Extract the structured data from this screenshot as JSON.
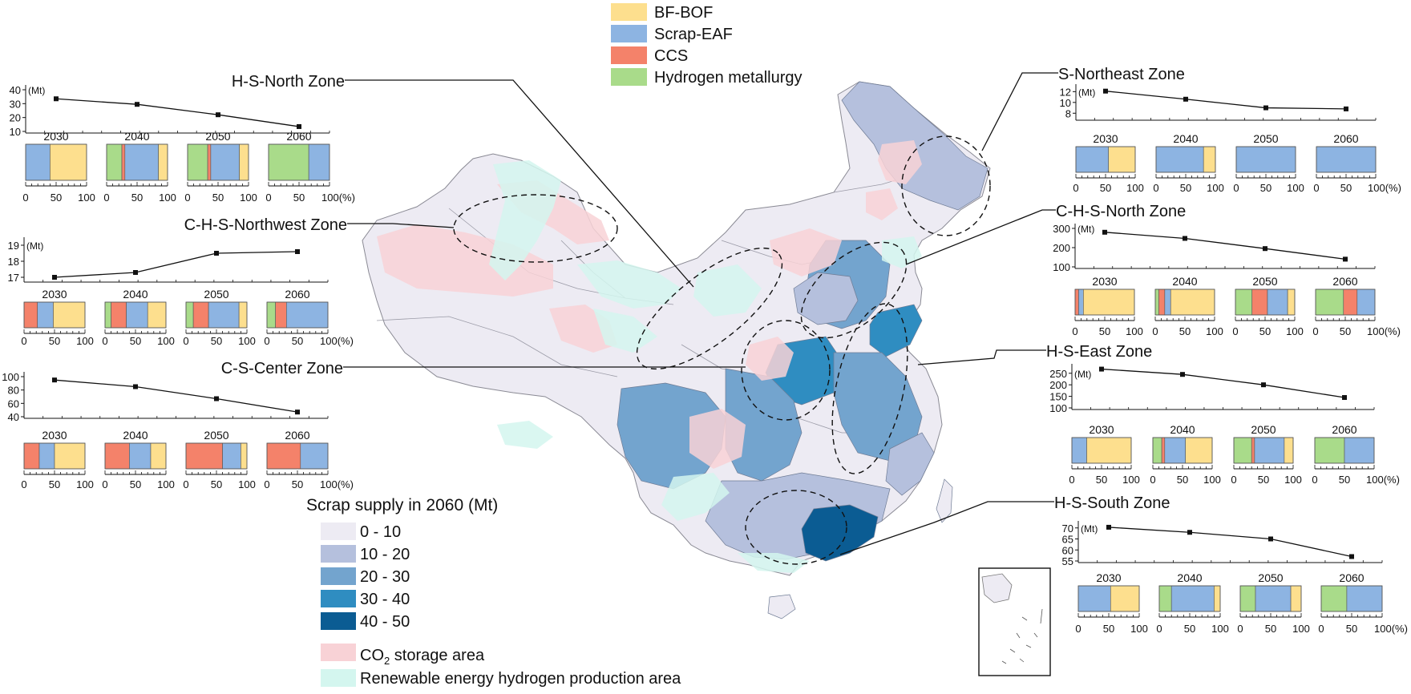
{
  "tech_legend": {
    "items": [
      {
        "key": "bfbof",
        "label": "BF-BOF",
        "color": "#FDDF8E"
      },
      {
        "key": "eaf",
        "label": "Scrap-EAF",
        "color": "#8DB4E2"
      },
      {
        "key": "ccs",
        "label": "CCS",
        "color": "#F4826A"
      },
      {
        "key": "h2",
        "label": "Hydrogen metallurgy",
        "color": "#A9DB8A"
      }
    ]
  },
  "scrap_legend": {
    "title": "Scrap supply in 2060 (Mt)",
    "classes": [
      {
        "label": "0 - 10",
        "color": "#EDEBF3"
      },
      {
        "label": "10 - 20",
        "color": "#B5C0DD"
      },
      {
        "label": "20 - 30",
        "color": "#73A4CE"
      },
      {
        "label": "30 - 40",
        "color": "#2F8DC1"
      },
      {
        "label": "40 - 50",
        "color": "#0B5C93"
      }
    ],
    "co2_label_main": "CO",
    "co2_label_sub": "2",
    "co2_label_rest": " storage area",
    "co2_color": "#F8D2D6",
    "renew_label": "Renewable energy hydrogen production area",
    "renew_color": "#D4F6EF"
  },
  "zones": [
    {
      "name": "H-S-North Zone",
      "years": [
        "2030",
        "2040",
        "2050",
        "2060"
      ],
      "line": {
        "unit": "(Mt)",
        "yticks": [
          "40",
          "30",
          "20",
          "10"
        ],
        "ytick_values": [
          40,
          30,
          20,
          10
        ],
        "ylim": [
          10,
          40
        ],
        "values": [
          33.5,
          29.5,
          22,
          13.5
        ]
      },
      "bars": [
        {
          "year": "2030",
          "h2": 0,
          "ccs": 0,
          "eaf": 40,
          "bfbof": 60
        },
        {
          "year": "2040",
          "h2": 25,
          "ccs": 5,
          "eaf": 55,
          "bfbof": 15
        },
        {
          "year": "2050",
          "h2": 33,
          "ccs": 5,
          "eaf": 47,
          "bfbof": 15
        },
        {
          "year": "2060",
          "h2": 66,
          "ccs": 0,
          "eaf": 34,
          "bfbof": 0
        }
      ],
      "bar_xticks": [
        "0",
        "50",
        "100"
      ],
      "bar_xunit": "100(%)"
    },
    {
      "name": "C-H-S-Northwest Zone",
      "years": [
        "2030",
        "2040",
        "2050",
        "2060"
      ],
      "line": {
        "unit": "(Mt)",
        "yticks": [
          "19",
          "18",
          "17"
        ],
        "ytick_values": [
          19,
          18,
          17
        ],
        "ylim": [
          16.8,
          19.2
        ],
        "values": [
          17.0,
          17.3,
          18.5,
          18.6
        ]
      },
      "bars": [
        {
          "year": "2030",
          "h2": 0,
          "ccs": 22,
          "eaf": 26,
          "bfbof": 52
        },
        {
          "year": "2040",
          "h2": 10,
          "ccs": 25,
          "eaf": 35,
          "bfbof": 30
        },
        {
          "year": "2050",
          "h2": 12,
          "ccs": 25,
          "eaf": 50,
          "bfbof": 13
        },
        {
          "year": "2060",
          "h2": 14,
          "ccs": 18,
          "eaf": 68,
          "bfbof": 0
        }
      ],
      "bar_xticks": [
        "0",
        "50",
        "100"
      ],
      "bar_xunit": "100(%)"
    },
    {
      "name": "C-S-Center Zone",
      "years": [
        "2030",
        "2040",
        "2050",
        "2060"
      ],
      "line": {
        "unit": "",
        "yticks": [
          "100",
          "80",
          "60",
          "40"
        ],
        "ytick_values": [
          100,
          80,
          60,
          40
        ],
        "ylim": [
          40,
          100
        ],
        "values": [
          95,
          85,
          67,
          47
        ]
      },
      "bars": [
        {
          "year": "2030",
          "h2": 0,
          "ccs": 25,
          "eaf": 25,
          "bfbof": 50
        },
        {
          "year": "2040",
          "h2": 0,
          "ccs": 40,
          "eaf": 35,
          "bfbof": 25
        },
        {
          "year": "2050",
          "h2": 0,
          "ccs": 60,
          "eaf": 30,
          "bfbof": 10
        },
        {
          "year": "2060",
          "h2": 0,
          "ccs": 55,
          "eaf": 45,
          "bfbof": 0
        }
      ],
      "bar_xticks": [
        "0",
        "50",
        "100"
      ],
      "bar_xunit": "100(%)"
    },
    {
      "name": "S-Northeast Zone",
      "years": [
        "2030",
        "2040",
        "2050",
        "2060"
      ],
      "line": {
        "unit": "(Mt)",
        "yticks": [
          "12",
          "10",
          "8"
        ],
        "ytick_values": [
          12,
          10,
          8
        ],
        "ylim": [
          7,
          12.5
        ],
        "values": [
          12.1,
          10.6,
          9.0,
          8.8
        ]
      },
      "bars": [
        {
          "year": "2030",
          "h2": 0,
          "ccs": 0,
          "eaf": 55,
          "bfbof": 45
        },
        {
          "year": "2040",
          "h2": 0,
          "ccs": 0,
          "eaf": 80,
          "bfbof": 20
        },
        {
          "year": "2050",
          "h2": 0,
          "ccs": 0,
          "eaf": 100,
          "bfbof": 0
        },
        {
          "year": "2060",
          "h2": 0,
          "ccs": 0,
          "eaf": 100,
          "bfbof": 0
        }
      ],
      "bar_xticks": [
        "0",
        "50",
        "100"
      ],
      "bar_xunit": "100(%)"
    },
    {
      "name": "C-H-S-North Zone",
      "years": [
        "2030",
        "2040",
        "2050",
        "2060"
      ],
      "line": {
        "unit": "(Mt)",
        "yticks": [
          "300",
          "200",
          "100"
        ],
        "ytick_values": [
          300,
          200,
          100
        ],
        "ylim": [
          100,
          300
        ],
        "values": [
          280,
          248,
          195,
          140
        ]
      },
      "bars": [
        {
          "year": "2030",
          "h2": 0,
          "ccs": 6,
          "eaf": 8,
          "bfbof": 86
        },
        {
          "year": "2040",
          "h2": 6,
          "ccs": 10,
          "eaf": 10,
          "bfbof": 74
        },
        {
          "year": "2050",
          "h2": 28,
          "ccs": 26,
          "eaf": 34,
          "bfbof": 12
        },
        {
          "year": "2060",
          "h2": 47,
          "ccs": 23,
          "eaf": 30,
          "bfbof": 0
        }
      ],
      "bar_xticks": [
        "0",
        "50",
        "100"
      ],
      "bar_xunit": "100(%)"
    },
    {
      "name": "H-S-East Zone",
      "years": [
        "2030",
        "2040",
        "2050",
        "2060"
      ],
      "line": {
        "unit": "(Mt)",
        "yticks": [
          "250",
          "200",
          "150",
          "100"
        ],
        "ytick_values": [
          250,
          200,
          150,
          100
        ],
        "ylim": [
          100,
          270
        ],
        "values": [
          268,
          245,
          200,
          145
        ]
      },
      "bars": [
        {
          "year": "2030",
          "h2": 0,
          "ccs": 0,
          "eaf": 25,
          "bfbof": 75
        },
        {
          "year": "2040",
          "h2": 15,
          "ccs": 5,
          "eaf": 35,
          "bfbof": 45
        },
        {
          "year": "2050",
          "h2": 30,
          "ccs": 5,
          "eaf": 50,
          "bfbof": 15
        },
        {
          "year": "2060",
          "h2": 50,
          "ccs": 0,
          "eaf": 50,
          "bfbof": 0
        }
      ],
      "bar_xticks": [
        "0",
        "50",
        "100"
      ],
      "bar_xunit": "100(%)"
    },
    {
      "name": "H-S-South Zone",
      "years": [
        "2030",
        "2040",
        "2050",
        "2060"
      ],
      "line": {
        "unit": "(Mt)",
        "yticks": [
          "70",
          "65",
          "60",
          "55"
        ],
        "ytick_values": [
          70,
          65,
          60,
          55
        ],
        "ylim": [
          55,
          71
        ],
        "values": [
          70.3,
          68,
          65,
          57
        ]
      },
      "bars": [
        {
          "year": "2030",
          "h2": 0,
          "ccs": 0,
          "eaf": 53,
          "bfbof": 47
        },
        {
          "year": "2040",
          "h2": 20,
          "ccs": 0,
          "eaf": 70,
          "bfbof": 10
        },
        {
          "year": "2050",
          "h2": 25,
          "ccs": 0,
          "eaf": 58,
          "bfbof": 17
        },
        {
          "year": "2060",
          "h2": 42,
          "ccs": 0,
          "eaf": 58,
          "bfbof": 0
        }
      ],
      "bar_xticks": [
        "0",
        "50",
        "100"
      ],
      "bar_xunit": "100(%)"
    }
  ]
}
